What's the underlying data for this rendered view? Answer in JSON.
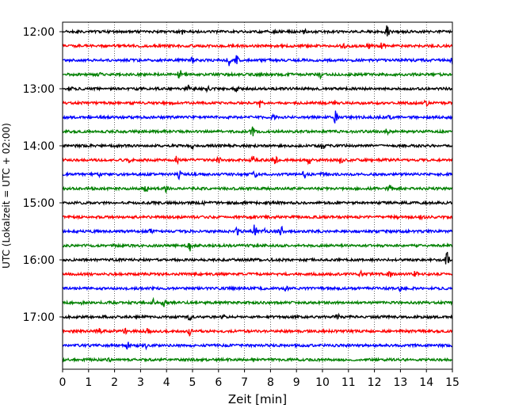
{
  "chart_data": {
    "type": "line",
    "title": "",
    "xlabel": "Zeit  [min]",
    "ylabel": "UTC (Lokalzeit = UTC + 02:00)",
    "xlim": [
      0,
      15
    ],
    "x_ticks": [
      "0",
      "1",
      "2",
      "3",
      "4",
      "5",
      "6",
      "7",
      "8",
      "9",
      "10",
      "11",
      "12",
      "13",
      "14",
      "15"
    ],
    "y_tick_labels": [
      "12:00",
      "13:00",
      "14:00",
      "15:00",
      "16:00",
      "17:00"
    ],
    "grid": "vertical dotted",
    "line_colors": [
      "#000000",
      "#ff0000",
      "#0000ff",
      "#008000"
    ],
    "traces": [
      {
        "start": "12:00",
        "color": "#000000",
        "events": [
          [
            12.5,
            1.0
          ],
          [
            4.6,
            0.3
          ],
          [
            9.3,
            0.3
          ]
        ]
      },
      {
        "start": "12:15",
        "color": "#ff0000",
        "events": [
          [
            10.8,
            0.7
          ],
          [
            12.3,
            0.6
          ],
          [
            11.8,
            0.3
          ]
        ]
      },
      {
        "start": "12:30",
        "color": "#0000ff",
        "events": [
          [
            6.4,
            0.8
          ],
          [
            6.7,
            0.6
          ],
          [
            15.0,
            0.5
          ],
          [
            5.0,
            0.3
          ]
        ]
      },
      {
        "start": "12:45",
        "color": "#008000",
        "events": [
          [
            4.5,
            0.7
          ],
          [
            9.9,
            0.4
          ],
          [
            1.4,
            0.3
          ]
        ]
      },
      {
        "start": "13:00",
        "color": "#000000",
        "events": [
          [
            4.8,
            0.6
          ],
          [
            5.6,
            0.5
          ],
          [
            6.7,
            0.4
          ],
          [
            0.3,
            0.3
          ]
        ]
      },
      {
        "start": "13:15",
        "color": "#ff0000",
        "events": [
          [
            7.6,
            0.7
          ],
          [
            14.0,
            0.5
          ],
          [
            10.5,
            0.3
          ]
        ]
      },
      {
        "start": "13:30",
        "color": "#0000ff",
        "events": [
          [
            10.5,
            0.8
          ],
          [
            8.1,
            0.3
          ],
          [
            12.6,
            0.3
          ]
        ]
      },
      {
        "start": "13:45",
        "color": "#008000",
        "events": [
          [
            7.3,
            0.6
          ],
          [
            12.5,
            0.4
          ]
        ]
      },
      {
        "start": "14:00",
        "color": "#000000",
        "events": [
          [
            10.0,
            0.6
          ],
          [
            5.0,
            0.3
          ]
        ]
      },
      {
        "start": "14:15",
        "color": "#ff0000",
        "events": [
          [
            7.3,
            0.8
          ],
          [
            8.2,
            0.6
          ],
          [
            9.5,
            0.6
          ],
          [
            10.7,
            0.5
          ],
          [
            6.0,
            0.5
          ],
          [
            4.4,
            0.5
          ],
          [
            2.6,
            0.4
          ]
        ]
      },
      {
        "start": "14:30",
        "color": "#0000ff",
        "events": [
          [
            4.5,
            0.6
          ],
          [
            9.3,
            0.5
          ],
          [
            7.4,
            0.4
          ],
          [
            1.4,
            0.3
          ],
          [
            10.0,
            0.3
          ]
        ]
      },
      {
        "start": "14:45",
        "color": "#008000",
        "events": [
          [
            3.2,
            0.7
          ],
          [
            4.0,
            0.7
          ],
          [
            12.6,
            0.8
          ]
        ]
      },
      {
        "start": "15:00",
        "color": "#000000",
        "events": [
          [
            5.5,
            0.2
          ]
        ]
      },
      {
        "start": "15:15",
        "color": "#ff0000",
        "events": [
          [
            13.8,
            0.7
          ],
          [
            12.8,
            0.3
          ]
        ]
      },
      {
        "start": "15:30",
        "color": "#0000ff",
        "events": [
          [
            7.4,
            1.0
          ],
          [
            6.7,
            0.8
          ],
          [
            8.4,
            0.8
          ],
          [
            7.8,
            0.5
          ],
          [
            3.4,
            0.3
          ]
        ]
      },
      {
        "start": "15:45",
        "color": "#008000",
        "events": [
          [
            4.9,
            0.8
          ]
        ]
      },
      {
        "start": "16:00",
        "color": "#000000",
        "events": [
          [
            14.8,
            1.0
          ],
          [
            8.0,
            0.3
          ]
        ]
      },
      {
        "start": "16:15",
        "color": "#ff0000",
        "events": [
          [
            13.6,
            0.6
          ],
          [
            12.6,
            0.5
          ],
          [
            11.5,
            0.4
          ]
        ]
      },
      {
        "start": "16:30",
        "color": "#0000ff",
        "events": [
          [
            13.0,
            0.3
          ],
          [
            8.6,
            0.3
          ]
        ]
      },
      {
        "start": "16:45",
        "color": "#008000",
        "events": [
          [
            3.5,
            0.5
          ],
          [
            3.9,
            0.5
          ],
          [
            0.7,
            0.3
          ]
        ]
      },
      {
        "start": "17:00",
        "color": "#000000",
        "events": [
          [
            4.9,
            0.5
          ],
          [
            6.2,
            0.3
          ],
          [
            10.6,
            0.3
          ]
        ]
      },
      {
        "start": "17:15",
        "color": "#ff0000",
        "events": [
          [
            1.4,
            0.6
          ],
          [
            3.3,
            0.5
          ],
          [
            4.9,
            0.6
          ],
          [
            2.4,
            0.3
          ]
        ]
      },
      {
        "start": "17:30",
        "color": "#0000ff",
        "events": [
          [
            2.5,
            0.4
          ],
          [
            3.2,
            0.3
          ]
        ]
      },
      {
        "start": "17:45",
        "color": "#008000",
        "events": [
          [
            1.8,
            0.2
          ]
        ]
      }
    ]
  }
}
